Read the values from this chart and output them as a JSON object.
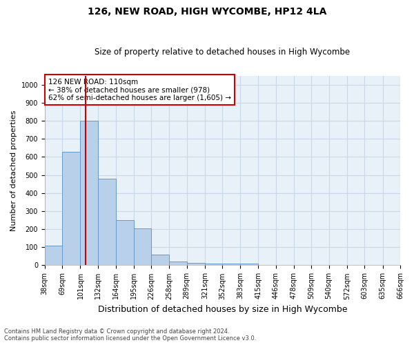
{
  "title1": "126, NEW ROAD, HIGH WYCOMBE, HP12 4LA",
  "title2": "Size of property relative to detached houses in High Wycombe",
  "xlabel": "Distribution of detached houses by size in High Wycombe",
  "ylabel": "Number of detached properties",
  "footnote1": "Contains HM Land Registry data © Crown copyright and database right 2024.",
  "footnote2": "Contains public sector information licensed under the Open Government Licence v3.0.",
  "bar_values": [
    110,
    630,
    800,
    480,
    250,
    205,
    60,
    22,
    15,
    10,
    10,
    10,
    0,
    0,
    0,
    0,
    0,
    0,
    0,
    0
  ],
  "bin_edges": [
    38,
    69,
    101,
    132,
    164,
    195,
    226,
    258,
    289,
    321,
    352,
    383,
    415,
    446,
    478,
    509,
    540,
    572,
    603,
    635,
    666
  ],
  "bar_color": "#b8d0ea",
  "bar_edge_color": "#6699cc",
  "vline_x": 110,
  "vline_color": "#cc0000",
  "annotation_text": "126 NEW ROAD: 110sqm\n← 38% of detached houses are smaller (978)\n62% of semi-detached houses are larger (1,605) →",
  "annotation_box_color": "#ffffff",
  "annotation_box_edge_color": "#cc0000",
  "ylim": [
    0,
    1050
  ],
  "yticks": [
    0,
    100,
    200,
    300,
    400,
    500,
    600,
    700,
    800,
    900,
    1000
  ],
  "grid_color": "#c8d8e8",
  "bg_color": "#e8f0f8",
  "title1_fontsize": 10,
  "title2_fontsize": 8.5,
  "ylabel_fontsize": 8,
  "xlabel_fontsize": 9,
  "tick_fontsize": 7,
  "footnote_fontsize": 6
}
